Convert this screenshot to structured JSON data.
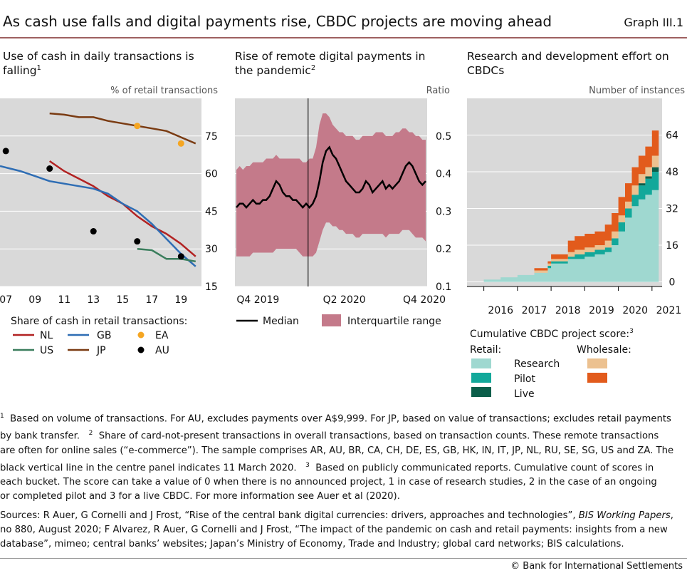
{
  "figure": {
    "title": "As cash use falls and digital payments rise, CBDC projects are moving ahead",
    "graph_id": "Graph III.1"
  },
  "panels": {
    "left": {
      "title_line1": "Use of cash in daily transactions is",
      "title_line2": "falling",
      "footnote": "1",
      "unit": "% of retail transactions"
    },
    "center": {
      "title_line1": "Rise of remote digital payments in",
      "title_line2": "the pandemic",
      "footnote": "2",
      "unit": "Ratio"
    },
    "right": {
      "title_line1": "Research and development effort on",
      "title_line2": "CBDCs",
      "unit": "Number of instances"
    }
  },
  "legends": {
    "left": {
      "title": "Share of cash in retail transactions:",
      "items": [
        "NL",
        "GB",
        "EA",
        "US",
        "JP",
        "AU"
      ]
    },
    "center": {
      "median": "Median",
      "iqr": "Interquartile range"
    },
    "right": {
      "title": "Cumulative CBDC project score:",
      "footnote": "3",
      "retail": "Retail:",
      "wholesale": "Wholesale:",
      "research": "Research",
      "pilot": "Pilot",
      "live": "Live"
    }
  },
  "colors": {
    "panel_bg": "#d9d9d9",
    "grid": "#ffffff",
    "NL": "#b22222",
    "GB": "#2e6db4",
    "EA": "#f5a623",
    "US": "#3a7d5c",
    "JP": "#7a3b12",
    "AU": "#000000",
    "iqr": "#c47a8a",
    "median": "#000000",
    "research": "#9fd8d0",
    "pilot": "#12a89a",
    "live": "#0b5e4a",
    "wholesale_research": "#ecc190",
    "wholesale_pilot": "#e25b1c"
  },
  "chart_data": [
    {
      "type": "line",
      "title": "Use of cash in daily transactions is falling",
      "ylabel": "% of retail transactions",
      "ylim": [
        15,
        90
      ],
      "xlim": [
        2006.6,
        2020.4
      ],
      "x_ticks": [
        "07",
        "09",
        "11",
        "13",
        "15",
        "17",
        "19"
      ],
      "y_ticks": [
        15,
        30,
        45,
        60,
        75
      ],
      "series": [
        {
          "name": "NL",
          "x": [
            2010,
            2011,
            2012,
            2013,
            2014,
            2015,
            2016,
            2017,
            2018,
            2019,
            2020
          ],
          "values": [
            65,
            61,
            58,
            55,
            51,
            48,
            43,
            39,
            36,
            32,
            27
          ]
        },
        {
          "name": "GB",
          "x": [
            2006.6,
            2008,
            2009,
            2010,
            2011,
            2012,
            2013,
            2014,
            2015,
            2016,
            2017,
            2018,
            2019,
            2020
          ],
          "values": [
            63,
            61,
            59,
            57,
            56,
            55,
            54,
            52,
            48,
            45,
            40,
            34,
            28,
            23
          ]
        },
        {
          "name": "US",
          "x": [
            2016,
            2017,
            2018,
            2019,
            2020
          ],
          "values": [
            30,
            29.5,
            26,
            26,
            25
          ]
        },
        {
          "name": "JP",
          "x": [
            2010,
            2011,
            2012,
            2013,
            2014,
            2015,
            2016,
            2017,
            2018,
            2019,
            2020
          ],
          "values": [
            84,
            83.5,
            82.5,
            82.5,
            81,
            80,
            79,
            78,
            77,
            74.5,
            72
          ]
        },
        {
          "name": "EA",
          "x": [
            2016,
            2019
          ],
          "values": [
            79,
            72
          ],
          "marker": "dot"
        },
        {
          "name": "AU",
          "x": [
            2007,
            2010,
            2013,
            2016,
            2019
          ],
          "values": [
            69,
            62,
            37,
            33,
            27
          ],
          "marker": "dot"
        }
      ]
    },
    {
      "type": "area",
      "title": "Rise of remote digital payments in the pandemic",
      "ylabel": "Ratio",
      "ylim": [
        0.1,
        0.6
      ],
      "x_ticks": [
        "Q4 2019",
        "Q2 2020",
        "Q4 2020"
      ],
      "y_ticks": [
        0.1,
        0.2,
        0.3,
        0.4,
        0.5
      ],
      "vertical_line": "11 March 2020",
      "weeks": 58,
      "vertical_line_week": 21.6,
      "series": [
        {
          "name": "Median",
          "values": [
            0.31,
            0.32,
            0.32,
            0.31,
            0.32,
            0.33,
            0.32,
            0.32,
            0.33,
            0.33,
            0.34,
            0.36,
            0.38,
            0.37,
            0.35,
            0.34,
            0.34,
            0.33,
            0.33,
            0.32,
            0.31,
            0.32,
            0.31,
            0.32,
            0.34,
            0.38,
            0.43,
            0.46,
            0.47,
            0.45,
            0.44,
            0.42,
            0.4,
            0.38,
            0.37,
            0.36,
            0.35,
            0.35,
            0.36,
            0.38,
            0.37,
            0.35,
            0.36,
            0.37,
            0.38,
            0.36,
            0.37,
            0.36,
            0.37,
            0.38,
            0.4,
            0.42,
            0.43,
            0.42,
            0.4,
            0.38,
            0.37,
            0.38
          ]
        },
        {
          "name": "Interquartile range",
          "lower": [
            0.18,
            0.18,
            0.18,
            0.18,
            0.18,
            0.19,
            0.19,
            0.19,
            0.19,
            0.19,
            0.19,
            0.19,
            0.2,
            0.2,
            0.2,
            0.2,
            0.2,
            0.2,
            0.2,
            0.19,
            0.18,
            0.18,
            0.18,
            0.18,
            0.19,
            0.22,
            0.25,
            0.27,
            0.27,
            0.26,
            0.26,
            0.25,
            0.25,
            0.24,
            0.24,
            0.24,
            0.23,
            0.23,
            0.24,
            0.24,
            0.24,
            0.24,
            0.24,
            0.24,
            0.24,
            0.23,
            0.24,
            0.24,
            0.24,
            0.24,
            0.25,
            0.25,
            0.25,
            0.24,
            0.23,
            0.23,
            0.23,
            0.22
          ],
          "upper": [
            0.41,
            0.42,
            0.41,
            0.42,
            0.42,
            0.43,
            0.43,
            0.43,
            0.43,
            0.44,
            0.44,
            0.44,
            0.45,
            0.44,
            0.44,
            0.44,
            0.44,
            0.44,
            0.44,
            0.44,
            0.43,
            0.43,
            0.44,
            0.44,
            0.47,
            0.53,
            0.56,
            0.56,
            0.55,
            0.53,
            0.52,
            0.51,
            0.51,
            0.5,
            0.5,
            0.5,
            0.49,
            0.49,
            0.5,
            0.5,
            0.5,
            0.5,
            0.51,
            0.51,
            0.51,
            0.5,
            0.5,
            0.5,
            0.51,
            0.51,
            0.52,
            0.52,
            0.51,
            0.51,
            0.5,
            0.5,
            0.49,
            0.49
          ]
        }
      ]
    },
    {
      "type": "area",
      "title": "Research and development effort on CBDCs",
      "ylabel": "Number of instances",
      "ylim": [
        -2,
        80
      ],
      "xlim": [
        2015.5,
        2021.3
      ],
      "x_ticks": [
        "2016",
        "2017",
        "2018",
        "2019",
        "2020",
        "2021"
      ],
      "y_ticks": [
        0,
        16,
        32,
        48,
        64
      ],
      "stacked": true,
      "x": [
        2015.5,
        2016.0,
        2016.5,
        2017.0,
        2017.5,
        2017.9,
        2018.0,
        2018.5,
        2018.7,
        2019.0,
        2019.3,
        2019.6,
        2019.8,
        2020.0,
        2020.2,
        2020.4,
        2020.6,
        2020.8,
        2021.0,
        2021.2
      ],
      "series": [
        {
          "name": "Retail research",
          "values": [
            0,
            1,
            2,
            3,
            4,
            6,
            8,
            10,
            10,
            11,
            12,
            13,
            16,
            22,
            28,
            33,
            36,
            38,
            40,
            42
          ]
        },
        {
          "name": "Retail pilot",
          "values": [
            0,
            0,
            0,
            0,
            0,
            1,
            1,
            1,
            2,
            2,
            2,
            2,
            3,
            4,
            4,
            5,
            6,
            7,
            8,
            9
          ]
        },
        {
          "name": "Retail live",
          "values": [
            0,
            0,
            0,
            0,
            0,
            0,
            0,
            0,
            0,
            0,
            0,
            0,
            0,
            0,
            0,
            0,
            1,
            1,
            2,
            3
          ]
        },
        {
          "name": "Wholesale research",
          "values": [
            0,
            0,
            0,
            0,
            1,
            1,
            1,
            2,
            2,
            2,
            2,
            3,
            3,
            3,
            3,
            4,
            4,
            4,
            5,
            6
          ]
        },
        {
          "name": "Wholesale pilot",
          "values": [
            0,
            0,
            0,
            0,
            1,
            1,
            2,
            5,
            6,
            6,
            6,
            7,
            8,
            8,
            8,
            8,
            8,
            9,
            11,
            12
          ]
        }
      ]
    }
  ],
  "footnotes": {
    "n1_mark": "1",
    "n1": "Based on volume of transactions. For AU, excludes payments over A$9,999. For JP, based on value of transactions; excludes retail payments",
    "n1b": "by bank transfer.",
    "n2_mark": "2",
    "n2": "Share of card-not-present transactions in overall transactions, based on transaction counts. These remote transactions",
    "n2b": "are often for online sales (“e-commerce”). The sample comprises AR, AU, BR, CA, CH, DE, ES, GB, HK, IN, IT, JP, NL, RU, SE, SG, US and ZA. The",
    "n2c": "black vertical line in the centre panel indicates 11 March 2020.",
    "n3_mark": "3",
    "n3": "Based on publicly communicated reports. Cumulative count of scores in",
    "n3b": "each bucket. The score can take a value of 0 when there is no announced project, 1 in case of research studies, 2 in the case of an ongoing",
    "n3c": "or completed pilot and 3 for a live CBDC. For more information see Auer et al (2020)."
  },
  "sources": {
    "s1a": "Sources: R Auer, G Cornelli and J Frost, “Rise of the central bank digital currencies: drivers, approaches and technologies”,",
    "s1b": "BIS Working Papers",
    "s1c": ",",
    "s2": "no 880, August 2020; F Alvarez, R Auer, G Cornelli and J Frost, “The impact of the pandemic on cash and retail payments: insights from a new",
    "s3": "database”, mimeo; central banks’ websites; Japan’s Ministry of Economy, Trade and Industry; global card networks; BIS calculations."
  },
  "copyright": "© Bank for International Settlements"
}
